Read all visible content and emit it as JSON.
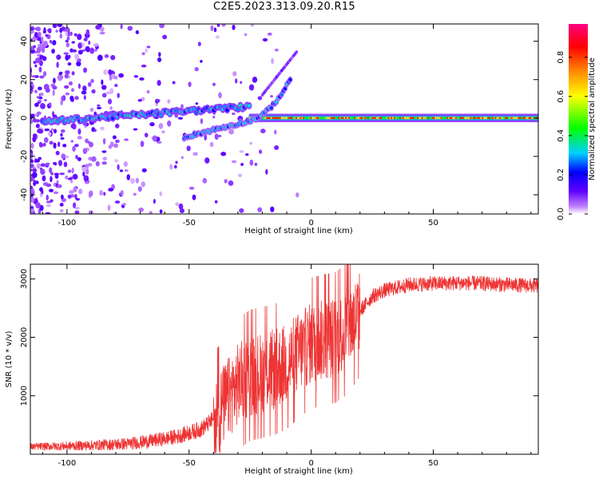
{
  "title": "C2E5.2023.313.09.20.R15",
  "chart_data": [
    {
      "type": "heatmap",
      "xlabel": "Height of straight line (km)",
      "ylabel": "Frequency (Hz)",
      "xlim": [
        -115,
        93
      ],
      "ylim": [
        -50,
        49
      ],
      "x_ticks": [
        -100,
        -50,
        0,
        50
      ],
      "y_ticks": [
        -40,
        -20,
        0,
        20,
        40
      ],
      "colorbar": {
        "label": "Normalized spectral amplitude",
        "range": [
          0,
          0.97
        ],
        "ticks": [
          0.0,
          0.2,
          0.4,
          0.6,
          0.8
        ],
        "colormap": [
          "#ffffff",
          "#c080ff",
          "#6000ff",
          "#0000ff",
          "#00d0ff",
          "#00ff00",
          "#ffff00",
          "#ff8000",
          "#ff0000",
          "#ff0080"
        ]
      },
      "features": [
        {
          "name": "stationary tone",
          "frequency_hz": 0,
          "x_range": [
            -25,
            93
          ],
          "amplitude": 0.85
        },
        {
          "name": "upper trace",
          "frequency_hz_range": [
            -2,
            8
          ],
          "x_range": [
            -110,
            -25
          ],
          "amplitude": 0.35
        },
        {
          "name": "rising trace",
          "frequency_hz_range": [
            -10,
            35
          ],
          "x_range": [
            -52,
            -8
          ],
          "amplitude": 0.3
        }
      ]
    },
    {
      "type": "line",
      "xlabel": "Height of straight line (km)",
      "ylabel": "SNR (10 * v/v)",
      "xlim": [
        -115,
        93
      ],
      "ylim": [
        0,
        3250
      ],
      "x_ticks": [
        -100,
        -50,
        0,
        50
      ],
      "y_ticks": [
        1000,
        2000,
        3000
      ],
      "color": "#ee3333",
      "series_profile": {
        "x": [
          -115,
          -100,
          -85,
          -75,
          -65,
          -55,
          -45,
          -40,
          -35,
          -30,
          -25,
          -20,
          -15,
          -10,
          -5,
          0,
          5,
          10,
          15,
          20,
          25,
          30,
          40,
          50,
          60,
          70,
          80,
          93
        ],
        "y": [
          130,
          140,
          160,
          180,
          230,
          300,
          430,
          600,
          900,
          1200,
          1350,
          1400,
          1450,
          1550,
          1750,
          1900,
          1950,
          2000,
          2150,
          2450,
          2700,
          2800,
          2900,
          2920,
          2930,
          2920,
          2900,
          2880
        ]
      }
    }
  ]
}
